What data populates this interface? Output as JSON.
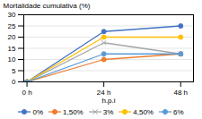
{
  "chart_data": {
    "type": "line",
    "xlabel": "h.p.i",
    "ylabel": "Mortalidade cumulativa (%)",
    "x": [
      0,
      24,
      48
    ],
    "series": [
      {
        "name": "0%",
        "color": "#4472C4",
        "marker": "circle",
        "line_style": "solid",
        "values": [
          0,
          22.5,
          25.0
        ]
      },
      {
        "name": "1,50%",
        "color": "#ED7D31",
        "marker": "circle",
        "line_style": "solid",
        "values": [
          0,
          10.0,
          12.5
        ]
      },
      {
        "name": "3%",
        "color": "#A5A5A5",
        "marker": "times",
        "line_style": "solid",
        "values": [
          0,
          17.5,
          12.5
        ]
      },
      {
        "name": "4,50%",
        "color": "#FFC000",
        "marker": "circle",
        "line_style": "solid",
        "values": [
          0,
          20.0,
          20.0
        ]
      },
      {
        "name": "6%",
        "color": "#5B9BD5",
        "marker": "circle",
        "line_style": "solid",
        "values": [
          0,
          12.5,
          12.5
        ]
      }
    ],
    "xlim": [
      -1,
      52
    ],
    "xticks": [
      {
        "value": 0,
        "label": "0 h"
      },
      {
        "value": 24,
        "label": "24 h"
      },
      {
        "value": 48,
        "label": "48 h"
      }
    ],
    "ylim": [
      0,
      30
    ],
    "yticks": [
      0,
      5,
      10,
      15,
      20,
      25,
      30
    ],
    "grid": true,
    "legend": "bottom"
  }
}
